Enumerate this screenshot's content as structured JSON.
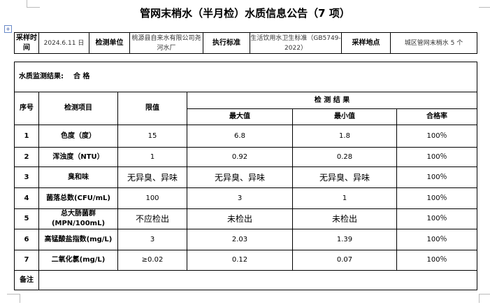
{
  "title": "管网末梢水（半月检）水质信息公告（7 项）",
  "info": {
    "sample_time_label": "采样时间",
    "sample_time": "2024.6.11 日",
    "unit_label": "检测单位",
    "unit": "桃源县自来水有限公司尧河水厂",
    "standard_label": "执行标准",
    "standard": "生活饮用水卫生标准（GB5749-2022）",
    "place_label": "采样地点",
    "place": "城区管网末梢水 5 个"
  },
  "result": {
    "label": "水质监测结果:",
    "value": "合 格"
  },
  "headers": {
    "no": "序号",
    "item": "检测项目",
    "limit": "限值",
    "results": "检 测 结 果",
    "max": "最大值",
    "min": "最小值",
    "rate": "合格率"
  },
  "rows": [
    {
      "no": "1",
      "item": "色度（度）",
      "limit": "15",
      "max": "6.8",
      "min": "1.8",
      "rate": "100％"
    },
    {
      "no": "2",
      "item": "浑浊度（NTU）",
      "limit": "1",
      "max": "0.92",
      "min": "0.28",
      "rate": "100％"
    },
    {
      "no": "3",
      "item": "臭和味",
      "limit": "无异臭、异味",
      "max": "无异臭、异味",
      "min": "无异臭、异味",
      "rate": "100％"
    },
    {
      "no": "4",
      "item": "菌落总数(CFU/mL)",
      "limit": "100",
      "max": "3",
      "min": "1",
      "rate": "100％"
    },
    {
      "no": "5",
      "item": "总大肠菌群(MPN/100mL)",
      "limit": "不应检出",
      "max": "未检出",
      "min": "未检出",
      "rate": "100％"
    },
    {
      "no": "6",
      "item": "高锰酸盐指数(mg/L)",
      "limit": "3",
      "max": "2.03",
      "min": "1.39",
      "rate": "100％"
    },
    {
      "no": "7",
      "item": "二氧化氯(mg/L)",
      "limit": "≥0.02",
      "max": "0.12",
      "min": "0.07",
      "rate": "100％"
    }
  ],
  "remarks_label": "备注"
}
